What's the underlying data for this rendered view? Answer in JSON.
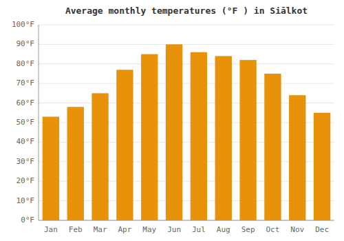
{
  "chart_data": {
    "type": "bar",
    "title": "Average monthly temperatures (°F ) in Siālkot",
    "categories": [
      "Jan",
      "Feb",
      "Mar",
      "Apr",
      "May",
      "Jun",
      "Jul",
      "Aug",
      "Sep",
      "Oct",
      "Nov",
      "Dec"
    ],
    "values": [
      53,
      58,
      65,
      77,
      85,
      90,
      86,
      84,
      82,
      75,
      64,
      55
    ],
    "color": "#E8920A",
    "ylim": [
      0,
      100
    ],
    "yticks": [
      {
        "value": 0,
        "label": "0°F"
      },
      {
        "value": 10,
        "label": "10°F"
      },
      {
        "value": 20,
        "label": "20°F"
      },
      {
        "value": 30,
        "label": "30°F"
      },
      {
        "value": 40,
        "label": "40°F"
      },
      {
        "value": 50,
        "label": "50°F"
      },
      {
        "value": 60,
        "label": "60°F"
      },
      {
        "value": 70,
        "label": "70°F"
      },
      {
        "value": 80,
        "label": "80°F"
      },
      {
        "value": 90,
        "label": "90°F"
      },
      {
        "value": 100,
        "label": "100°F"
      }
    ],
    "grid": true
  }
}
